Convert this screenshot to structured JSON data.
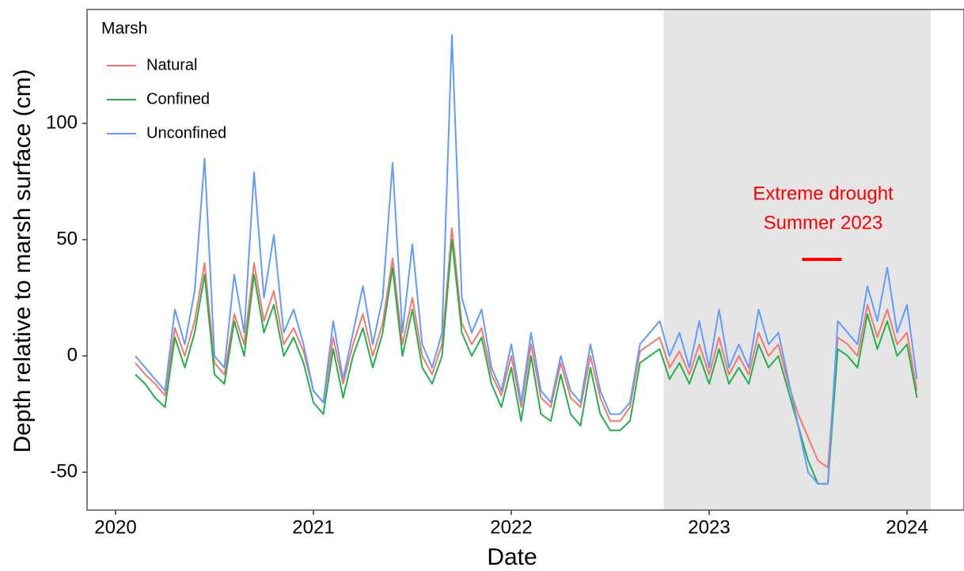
{
  "chart_data": {
    "type": "line",
    "x_label": "Date",
    "y_label": "Depth relative to marsh surface (cm)",
    "legend_title": "Marsh",
    "legend_position": "top-left",
    "xlim": [
      2019.856,
      2024.288
    ],
    "ylim": [
      -66.3,
      149
    ],
    "xticks": [
      2020,
      2021,
      2022,
      2023,
      2024
    ],
    "yticks": [
      -50,
      0,
      50,
      100
    ],
    "shaded_region": [
      2022.77,
      2024.12
    ],
    "annotation": {
      "text": [
        "Extreme drought",
        "Summer 2023"
      ],
      "color": "#ff0000",
      "segment_x": [
        2023.47,
        2023.67
      ],
      "segment_y": 41.5
    },
    "x": [
      2020.1,
      2020.15,
      2020.2,
      2020.25,
      2020.3,
      2020.35,
      2020.4,
      2020.45,
      2020.5,
      2020.55,
      2020.6,
      2020.65,
      2020.7,
      2020.75,
      2020.8,
      2020.85,
      2020.9,
      2020.95,
      2021.0,
      2021.05,
      2021.1,
      2021.15,
      2021.2,
      2021.25,
      2021.3,
      2021.35,
      2021.4,
      2021.45,
      2021.5,
      2021.55,
      2021.6,
      2021.65,
      2021.7,
      2021.75,
      2021.8,
      2021.85,
      2021.9,
      2021.95,
      2022.0,
      2022.05,
      2022.1,
      2022.15,
      2022.2,
      2022.25,
      2022.3,
      2022.35,
      2022.4,
      2022.45,
      2022.5,
      2022.55,
      2022.6,
      2022.65,
      2022.7,
      2022.75,
      2022.8,
      2022.85,
      2022.9,
      2022.95,
      2023.0,
      2023.05,
      2023.1,
      2023.15,
      2023.2,
      2023.25,
      2023.3,
      2023.35,
      2023.4,
      2023.45,
      2023.5,
      2023.55,
      2023.6,
      2023.65,
      2023.7,
      2023.75,
      2023.8,
      2023.85,
      2023.9,
      2023.95,
      2024.0,
      2024.05
    ],
    "series": [
      {
        "name": "Natural",
        "color": "#f8766d",
        "values": [
          -3,
          -8,
          -12,
          -17,
          12,
          0,
          15,
          40,
          -3,
          -8,
          18,
          5,
          40,
          15,
          28,
          5,
          12,
          2,
          -15,
          -20,
          8,
          -12,
          5,
          18,
          0,
          14,
          42,
          5,
          25,
          0,
          -8,
          5,
          55,
          14,
          5,
          12,
          -8,
          -17,
          0,
          -22,
          5,
          -18,
          -22,
          -3,
          -18,
          -22,
          0,
          -18,
          -28,
          -28,
          -22,
          2,
          5,
          8,
          -5,
          2,
          -8,
          5,
          -8,
          8,
          -8,
          0,
          -8,
          10,
          0,
          5,
          -12,
          -25,
          -35,
          -45,
          -48,
          8,
          5,
          0,
          22,
          8,
          20,
          5,
          10,
          -15
        ]
      },
      {
        "name": "Confined",
        "color": "#22b14c",
        "values": [
          -8,
          -12,
          -18,
          -22,
          8,
          -5,
          10,
          35,
          -8,
          -12,
          15,
          0,
          35,
          10,
          22,
          0,
          8,
          -3,
          -20,
          -25,
          3,
          -18,
          0,
          12,
          -5,
          10,
          38,
          0,
          20,
          -5,
          -12,
          0,
          50,
          10,
          0,
          8,
          -12,
          -22,
          -5,
          -28,
          0,
          -25,
          -28,
          -8,
          -25,
          -30,
          -5,
          -25,
          -32,
          -32,
          -28,
          -3,
          0,
          3,
          -10,
          -3,
          -12,
          0,
          -12,
          3,
          -12,
          -5,
          -12,
          5,
          -5,
          0,
          -15,
          -30,
          -45,
          -55,
          -55,
          3,
          0,
          -5,
          18,
          3,
          15,
          0,
          5,
          -18
        ]
      },
      {
        "name": "Unconfined",
        "color": "#619cff",
        "values": [
          0,
          -5,
          -10,
          -15,
          20,
          5,
          28,
          85,
          0,
          -5,
          35,
          10,
          79,
          25,
          52,
          10,
          20,
          5,
          -15,
          -20,
          15,
          -10,
          10,
          30,
          5,
          25,
          83,
          10,
          48,
          5,
          -5,
          10,
          138,
          25,
          10,
          20,
          -5,
          -15,
          5,
          -20,
          10,
          -15,
          -20,
          0,
          -15,
          -20,
          5,
          -15,
          -25,
          -25,
          -20,
          5,
          10,
          15,
          0,
          10,
          -5,
          15,
          -5,
          20,
          -5,
          5,
          -5,
          20,
          5,
          10,
          -10,
          -30,
          -50,
          -55,
          -55,
          15,
          10,
          5,
          30,
          15,
          38,
          10,
          22,
          -10
        ]
      }
    ]
  }
}
